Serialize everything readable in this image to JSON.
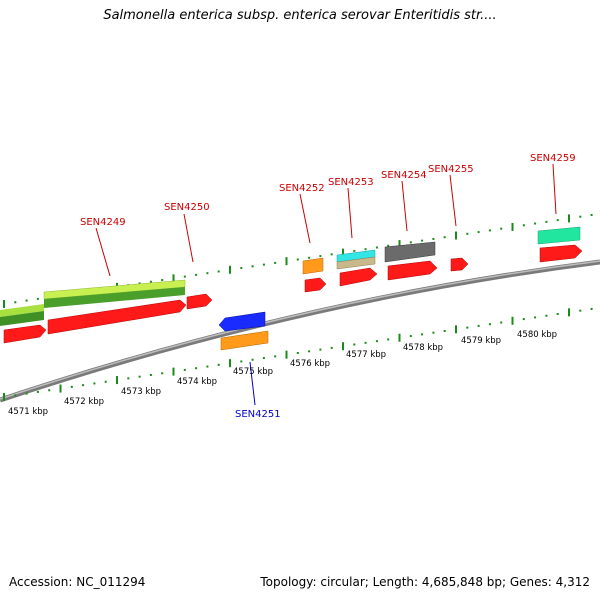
{
  "title": "Salmonella enterica subsp. enterica serovar Enteritidis str....",
  "footer": {
    "accession": "Accession: NC_011294",
    "summary": "Topology: circular; Length: 4,685,848 bp; Genes: 4,312"
  },
  "colors": {
    "cds": "#ff1a1a",
    "gene_green": "#7ed321",
    "gene_lime": "#c8f050",
    "orange": "#ff9a1a",
    "cyan": "#33e6e6",
    "tan": "#c9b98a",
    "gray": "#6b6b6b",
    "teal": "#21e6a0",
    "blue": "#1a2bff",
    "backbone": "#8a8a8a",
    "tick": "#1a8a1a",
    "label_red": "#cc0000",
    "label_blue": "#0000cc"
  },
  "scale": {
    "ticks": [
      "4571 kbp",
      "4572 kbp",
      "4573 kbp",
      "4574 kbp",
      "4575 kbp",
      "4576 kbp",
      "4577 kbp",
      "4578 kbp",
      "4579 kbp",
      "4580 kbp"
    ]
  },
  "gene_labels": [
    {
      "name": "SEN4249",
      "color": "red"
    },
    {
      "name": "SEN4250",
      "color": "red"
    },
    {
      "name": "SEN4251",
      "color": "blue"
    },
    {
      "name": "SEN4252",
      "color": "red"
    },
    {
      "name": "SEN4253",
      "color": "red"
    },
    {
      "name": "SEN4254",
      "color": "red"
    },
    {
      "name": "SEN4255",
      "color": "red"
    },
    {
      "name": "SEN4259",
      "color": "red"
    }
  ]
}
